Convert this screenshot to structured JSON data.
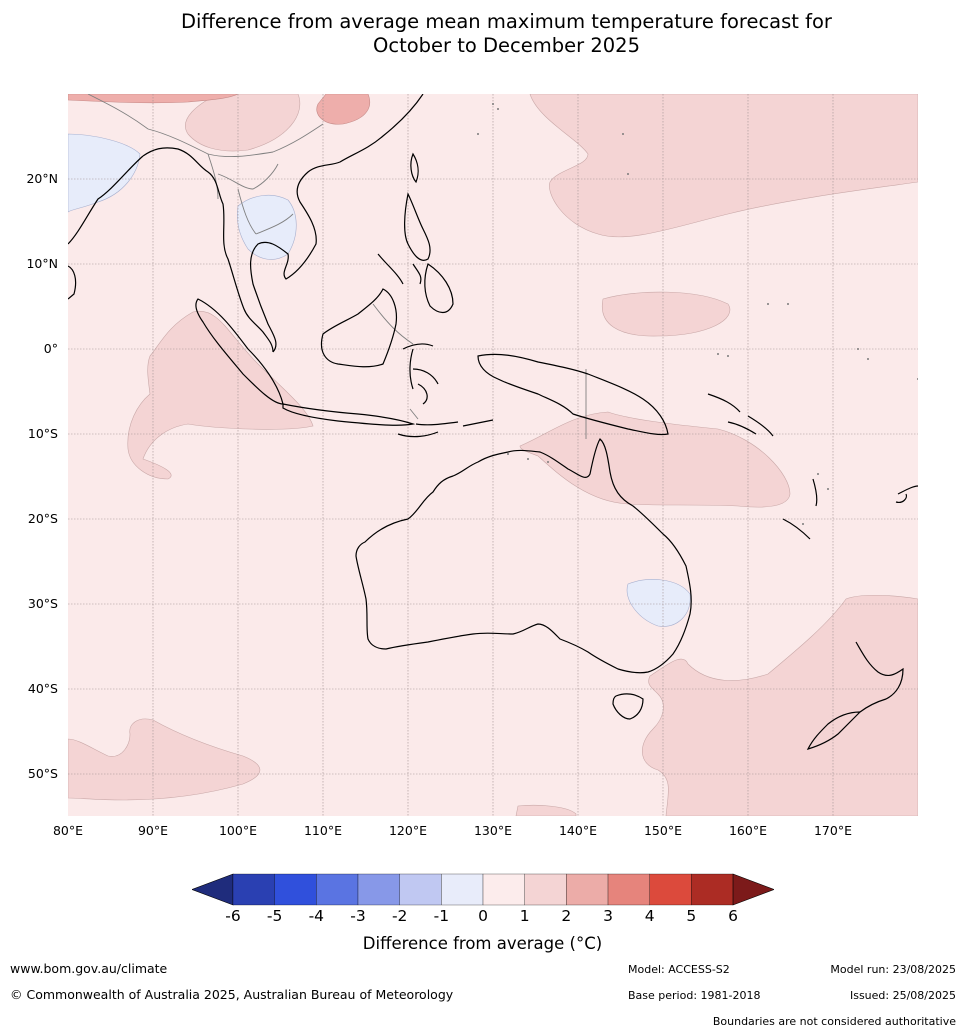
{
  "title": {
    "line1": "Difference from average mean maximum temperature forecast for",
    "line2": "October to December 2025"
  },
  "map": {
    "lat_labels": [
      "20°N",
      "10°N",
      "0°",
      "10°S",
      "20°S",
      "30°S",
      "40°S",
      "50°S"
    ],
    "lon_labels": [
      "80°E",
      "90°E",
      "100°E",
      "110°E",
      "120°E",
      "130°E",
      "140°E",
      "150°E",
      "160°E",
      "170°E"
    ],
    "colors": {
      "ocean_background": "#fbeaea",
      "anomaly_0_1": "#fbeaea",
      "anomaly_1_2": "#f4d4d4",
      "anomaly_2_3": "#eeaeab",
      "anomaly_neg1_0": "#e7ecfa",
      "coastline": "#000000",
      "borders": "#808080",
      "gridlines": "#a09090"
    }
  },
  "colorbar": {
    "ticks": [
      "-6",
      "-5",
      "-4",
      "-3",
      "-2",
      "-1",
      "0",
      "1",
      "2",
      "3",
      "4",
      "5",
      "6"
    ],
    "colors": [
      "#1f2c7c",
      "#2a40b2",
      "#3050dc",
      "#5a74e2",
      "#8798e8",
      "#c0c8f2",
      "#e8ecfa",
      "#fcecec",
      "#f4d4d4",
      "#ecaca8",
      "#e6847c",
      "#dc4a3c",
      "#ac2c24",
      "#7c1a1a"
    ],
    "label": "Difference from average (°C)"
  },
  "footer": {
    "website": "www.bom.gov.au/climate",
    "copyright": "© Commonwealth of Australia 2025, Australian Bureau of Meteorology",
    "model": "Model: ACCESS-S2",
    "base_period": "Base period: 1981-2018",
    "model_run": "Model run: 23/08/2025",
    "issued": "Issued: 25/08/2025",
    "disclaimer": "Boundaries are not considered authoritative"
  }
}
